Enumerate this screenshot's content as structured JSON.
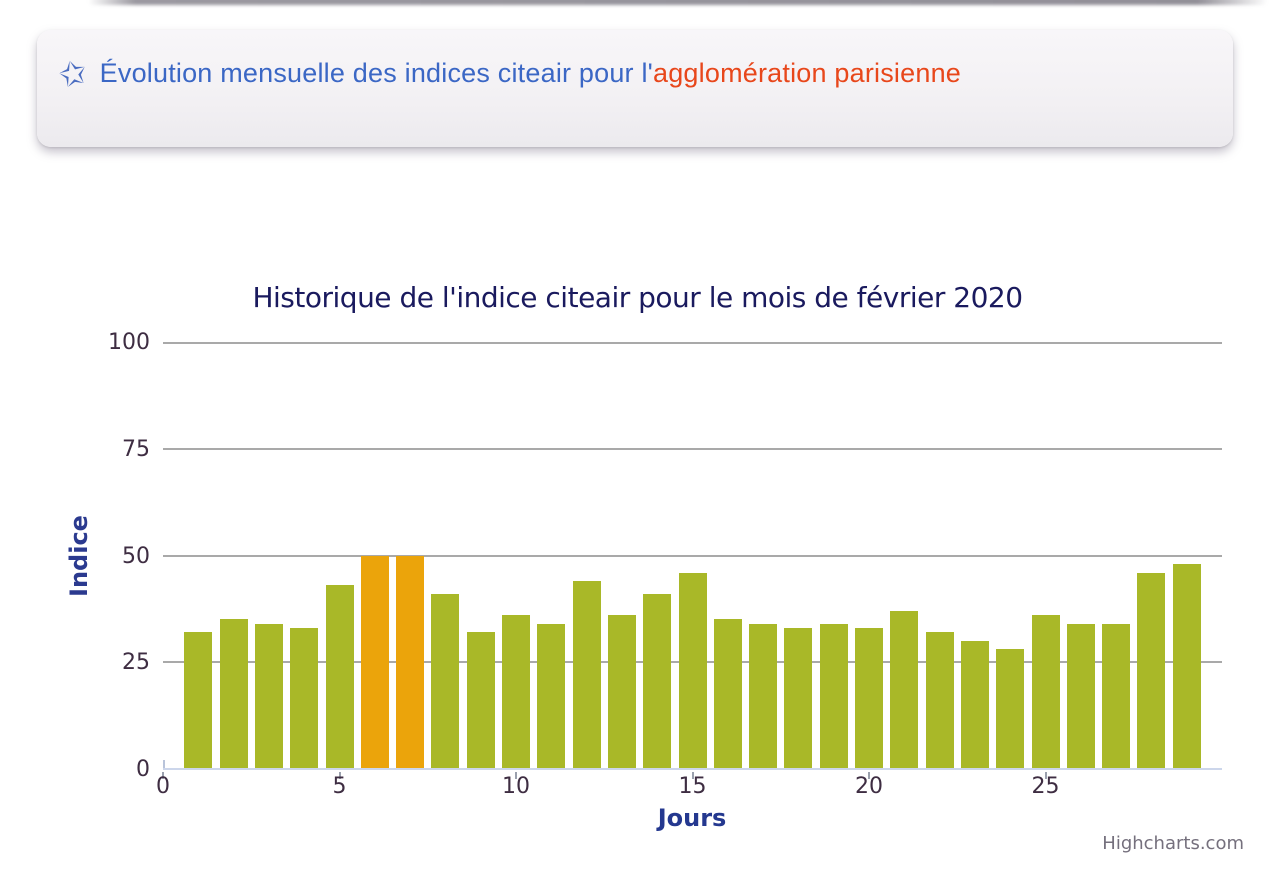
{
  "banner": {
    "icon": "star-icon",
    "star_glyph": "✩",
    "text_blue": "Évolution mensuelle des indices citeair pour l'",
    "text_red": "agglomération parisienne"
  },
  "chart_data": {
    "type": "bar",
    "title": "Historique de l'indice citeair pour le mois de février 2020",
    "xlabel": "Jours",
    "ylabel": "Indice",
    "credit": "Highcharts.com",
    "x": [
      1,
      2,
      3,
      4,
      5,
      6,
      7,
      8,
      9,
      10,
      11,
      12,
      13,
      14,
      15,
      16,
      17,
      18,
      19,
      20,
      21,
      22,
      23,
      24,
      25,
      26,
      27,
      28,
      29
    ],
    "values": [
      32,
      35,
      34,
      33,
      43,
      50,
      50,
      41,
      32,
      36,
      34,
      44,
      36,
      41,
      46,
      35,
      34,
      33,
      34,
      33,
      37,
      32,
      30,
      28,
      36,
      34,
      34,
      46,
      48
    ],
    "highlight_days": [
      6,
      7
    ],
    "colors": {
      "bar": "#a9b828",
      "highlight": "#eba40b"
    },
    "xlim": [
      0,
      30
    ],
    "ylim": [
      0,
      100
    ],
    "yticks": [
      0,
      25,
      50,
      75,
      100
    ],
    "xticks": [
      0,
      5,
      10,
      15,
      20,
      25
    ],
    "grid": "horizontal",
    "legend": "none"
  }
}
